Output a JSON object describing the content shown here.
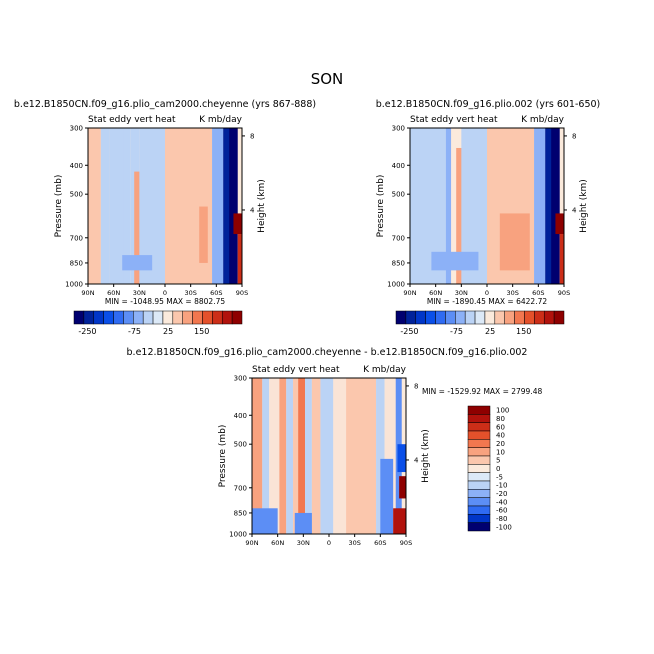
{
  "figure_title": "SON",
  "chart_data": [
    {
      "type": "heatmap",
      "title": "b.e12.B1850CN.f09_g16.plio_cam2000.cheyenne (yrs 867-888)",
      "left_label": "Stat eddy vert heat",
      "right_label": "K mb/day",
      "xlabel": "",
      "ylabel": "Pressure (mb)",
      "y2label": "Height (km)",
      "x_ticks": [
        "90N",
        "60N",
        "30N",
        "0",
        "30S",
        "60S",
        "90S"
      ],
      "y_ticks": [
        "300",
        "400",
        "500",
        "700",
        "850",
        "1000"
      ],
      "y_tick_values": [
        300,
        400,
        500,
        700,
        850,
        1000
      ],
      "ylim": [
        300,
        1000
      ],
      "y2_ticks": [
        "8",
        "4"
      ],
      "y2_tick_values": [
        8,
        4
      ],
      "stats_text": "MIN = -1048.95   MAX = 8802.75",
      "min": -1048.95,
      "max": 8802.75,
      "colorbar": {
        "orientation": "horizontal",
        "labels": [
          "-250",
          "-75",
          "25",
          "150"
        ],
        "levels": [
          -250,
          -200,
          -150,
          -100,
          -75,
          -50,
          -25,
          -10,
          0,
          10,
          25,
          50,
          75,
          100,
          150,
          200,
          250
        ]
      },
      "regions": [
        {
          "lat_range": [
            90,
            75
          ],
          "p_range": [
            300,
            1000
          ],
          "value": 20
        },
        {
          "lat_range": [
            75,
            65
          ],
          "p_range": [
            300,
            1000
          ],
          "value": -15
        },
        {
          "lat_range": [
            65,
            47
          ],
          "p_range": [
            300,
            1000
          ],
          "value": -5
        },
        {
          "lat_range": [
            48,
            40
          ],
          "p_range": [
            300,
            1000
          ],
          "value": -20
        },
        {
          "lat_range": [
            40,
            30
          ],
          "p_range": [
            300,
            1000
          ],
          "value": -5
        },
        {
          "lat_range": [
            36,
            28
          ],
          "p_range": [
            420,
            1000
          ],
          "value": 40
        },
        {
          "lat_range": [
            30,
            0
          ],
          "p_range": [
            300,
            1000
          ],
          "value": -10
        },
        {
          "lat_range": [
            0,
            -55
          ],
          "p_range": [
            300,
            1000
          ],
          "value": 10
        },
        {
          "lat_range": [
            -40,
            -50
          ],
          "p_range": [
            550,
            850
          ],
          "value": 25
        },
        {
          "lat_range": [
            -55,
            -68
          ],
          "p_range": [
            300,
            1000
          ],
          "value": -30
        },
        {
          "lat_range": [
            -68,
            -80
          ],
          "p_range": [
            300,
            1000
          ],
          "value": -200
        },
        {
          "lat_range": [
            -75,
            -85
          ],
          "p_range": [
            300,
            1000
          ],
          "value": -250
        },
        {
          "lat_range": [
            -80,
            -90
          ],
          "p_range": [
            580,
            680
          ],
          "value": 250
        },
        {
          "lat_range": [
            -85,
            -90
          ],
          "p_range": [
            680,
            1000
          ],
          "value": 150
        },
        {
          "lat_range": [
            50,
            15
          ],
          "p_range": [
            800,
            900
          ],
          "value": -30
        }
      ]
    },
    {
      "type": "heatmap",
      "title": "b.e12.B1850CN.f09_g16.plio.002 (yrs 601-650)",
      "left_label": "Stat eddy vert heat",
      "right_label": "K mb/day",
      "xlabel": "",
      "ylabel": "Pressure (mb)",
      "y2label": "Height (km)",
      "x_ticks": [
        "90N",
        "60N",
        "30N",
        "0",
        "30S",
        "60S",
        "90S"
      ],
      "y_ticks": [
        "300",
        "400",
        "500",
        "700",
        "850",
        "1000"
      ],
      "y_tick_values": [
        300,
        400,
        500,
        700,
        850,
        1000
      ],
      "ylim": [
        300,
        1000
      ],
      "y2_ticks": [
        "8",
        "4"
      ],
      "y2_tick_values": [
        8,
        4
      ],
      "stats_text": "MIN = -1890.45   MAX = 6422.72",
      "min": -1890.45,
      "max": 6422.72,
      "colorbar": {
        "orientation": "horizontal",
        "labels": [
          "-250",
          "-75",
          "25",
          "150"
        ],
        "levels": [
          -250,
          -200,
          -150,
          -100,
          -75,
          -50,
          -25,
          -10,
          0,
          10,
          25,
          50,
          75,
          100,
          150,
          200,
          250
        ]
      },
      "regions": [
        {
          "lat_range": [
            90,
            45
          ],
          "p_range": [
            300,
            1000
          ],
          "value": -5
        },
        {
          "lat_range": [
            48,
            42
          ],
          "p_range": [
            300,
            1000
          ],
          "value": -25
        },
        {
          "lat_range": [
            36,
            28
          ],
          "p_range": [
            350,
            1000
          ],
          "value": 30
        },
        {
          "lat_range": [
            30,
            0
          ],
          "p_range": [
            300,
            1000
          ],
          "value": -10
        },
        {
          "lat_range": [
            0,
            -55
          ],
          "p_range": [
            300,
            1000
          ],
          "value": 10
        },
        {
          "lat_range": [
            -15,
            -50
          ],
          "p_range": [
            580,
            900
          ],
          "value": 25
        },
        {
          "lat_range": [
            -55,
            -68
          ],
          "p_range": [
            300,
            1000
          ],
          "value": -30
        },
        {
          "lat_range": [
            -68,
            -80
          ],
          "p_range": [
            300,
            1000
          ],
          "value": -200
        },
        {
          "lat_range": [
            -75,
            -85
          ],
          "p_range": [
            300,
            1000
          ],
          "value": -250
        },
        {
          "lat_range": [
            -80,
            -90
          ],
          "p_range": [
            580,
            680
          ],
          "value": 250
        },
        {
          "lat_range": [
            -85,
            -90
          ],
          "p_range": [
            680,
            1000
          ],
          "value": 150
        },
        {
          "lat_range": [
            65,
            10
          ],
          "p_range": [
            780,
            900
          ],
          "value": -30
        }
      ]
    },
    {
      "type": "heatmap",
      "title": "b.e12.B1850CN.f09_g16.plio_cam2000.cheyenne - b.e12.B1850CN.f09_g16.plio.002",
      "left_label": "Stat eddy vert heat",
      "right_label": "K mb/day",
      "xlabel": "",
      "ylabel": "Pressure (mb)",
      "y2label": "Height (km)",
      "x_ticks": [
        "90N",
        "60N",
        "30N",
        "0",
        "30S",
        "60S",
        "90S"
      ],
      "y_ticks": [
        "300",
        "400",
        "500",
        "700",
        "850",
        "1000"
      ],
      "y_tick_values": [
        300,
        400,
        500,
        700,
        850,
        1000
      ],
      "ylim": [
        300,
        1000
      ],
      "y2_ticks": [
        "8",
        "4"
      ],
      "y2_tick_values": [
        8,
        4
      ],
      "stats_text": "MIN = -1529.92   MAX = 2799.48",
      "min": -1529.92,
      "max": 2799.48,
      "colorbar": {
        "orientation": "vertical",
        "labels": [
          "100",
          "80",
          "60",
          "40",
          "20",
          "10",
          "5",
          "0",
          "-5",
          "-10",
          "-20",
          "-40",
          "-60",
          "-80",
          "-100"
        ],
        "levels": [
          100,
          80,
          60,
          40,
          20,
          10,
          5,
          0,
          -5,
          -10,
          -20,
          -40,
          -60,
          -80,
          -100
        ]
      },
      "regions": [
        {
          "lat_range": [
            90,
            78
          ],
          "p_range": [
            300,
            1000
          ],
          "value": 10
        },
        {
          "lat_range": [
            78,
            70
          ],
          "p_range": [
            300,
            1000
          ],
          "value": -7
        },
        {
          "lat_range": [
            70,
            58
          ],
          "p_range": [
            300,
            1000
          ],
          "value": 3
        },
        {
          "lat_range": [
            58,
            50
          ],
          "p_range": [
            300,
            1000
          ],
          "value": 10
        },
        {
          "lat_range": [
            50,
            42
          ],
          "p_range": [
            300,
            1000
          ],
          "value": -7
        },
        {
          "lat_range": [
            42,
            35
          ],
          "p_range": [
            300,
            1000
          ],
          "value": 8
        },
        {
          "lat_range": [
            36,
            28
          ],
          "p_range": [
            300,
            1000
          ],
          "value": 25
        },
        {
          "lat_range": [
            28,
            20
          ],
          "p_range": [
            300,
            1000
          ],
          "value": -8
        },
        {
          "lat_range": [
            20,
            10
          ],
          "p_range": [
            300,
            1000
          ],
          "value": 8
        },
        {
          "lat_range": [
            10,
            0
          ],
          "p_range": [
            300,
            1000
          ],
          "value": -8
        },
        {
          "lat_range": [
            0,
            -5
          ],
          "p_range": [
            300,
            1000
          ],
          "value": -3
        },
        {
          "lat_range": [
            -5,
            -20
          ],
          "p_range": [
            300,
            1000
          ],
          "value": 3
        },
        {
          "lat_range": [
            -20,
            -55
          ],
          "p_range": [
            300,
            1000
          ],
          "value": 8
        },
        {
          "lat_range": [
            -55,
            -65
          ],
          "p_range": [
            300,
            1000
          ],
          "value": -8
        },
        {
          "lat_range": [
            -65,
            -80
          ],
          "p_range": [
            300,
            1000
          ],
          "value": 3
        },
        {
          "lat_range": [
            -60,
            -75
          ],
          "p_range": [
            560,
            1000
          ],
          "value": -25
        },
        {
          "lat_range": [
            -78,
            -85
          ],
          "p_range": [
            300,
            1000
          ],
          "value": -20
        },
        {
          "lat_range": [
            -82,
            -90
          ],
          "p_range": [
            640,
            760
          ],
          "value": 100
        },
        {
          "lat_range": [
            -75,
            -90
          ],
          "p_range": [
            820,
            1000
          ],
          "value": 80
        },
        {
          "lat_range": [
            -80,
            -90
          ],
          "p_range": [
            500,
            620
          ],
          "value": -40
        },
        {
          "lat_range": [
            90,
            60
          ],
          "p_range": [
            820,
            1000
          ],
          "value": -25
        },
        {
          "lat_range": [
            40,
            20
          ],
          "p_range": [
            850,
            1000
          ],
          "value": -20
        }
      ]
    }
  ]
}
